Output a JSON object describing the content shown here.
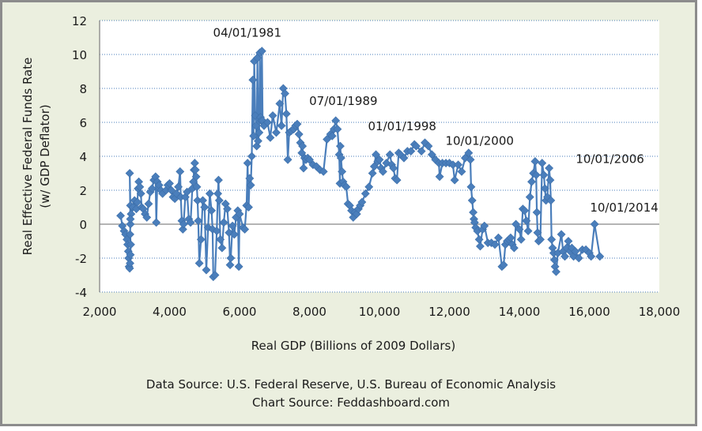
{
  "chart_data": {
    "type": "scatter",
    "mode": "lines+markers",
    "title": "",
    "xlabel": "Real GDP (Billions of 2009 Dollars)",
    "ylabel_lines": [
      "Real Effective Federal Funds Rate",
      "(w/ GDP Deflator)"
    ],
    "xlim": [
      2000,
      18000
    ],
    "ylim": [
      -4,
      12
    ],
    "x_ticks": [
      2000,
      4000,
      6000,
      8000,
      10000,
      12000,
      14000,
      16000,
      18000
    ],
    "x_tick_labels": [
      "2,000",
      "4,000",
      "6,000",
      "8,000",
      "10,000",
      "12,000",
      "14,000",
      "16,000",
      "18,000"
    ],
    "y_ticks": [
      -4,
      -2,
      0,
      2,
      4,
      6,
      8,
      10,
      12
    ],
    "y_tick_labels": [
      "-4",
      "-2",
      "0",
      "2",
      "4",
      "6",
      "8",
      "10",
      "12"
    ],
    "grid": "horizontal dotted",
    "series_color": "#4a7ebb",
    "marker": "diamond",
    "annotations": [
      {
        "text": "04/01/1981",
        "x": 6600,
        "y": 10.2
      },
      {
        "text": "07/01/1989",
        "x": 8850,
        "y": 6.1
      },
      {
        "text": "01/01/1998",
        "x": 11300,
        "y": 4.8
      },
      {
        "text": "10/01/2000",
        "x": 12700,
        "y": 4.2
      },
      {
        "text": "10/01/2006",
        "x": 14800,
        "y": 3.7
      },
      {
        "text": "10/01/2014",
        "x": 16200,
        "y": 0.0
      }
    ],
    "points": [
      [
        2600,
        0.5
      ],
      [
        2650,
        -0.1
      ],
      [
        2700,
        -0.4
      ],
      [
        2740,
        -0.6
      ],
      [
        2780,
        -0.9
      ],
      [
        2800,
        -1.2
      ],
      [
        2820,
        -1.6
      ],
      [
        2830,
        -2.0
      ],
      [
        2840,
        -2.5
      ],
      [
        2860,
        -2.6
      ],
      [
        2870,
        -2.3
      ],
      [
        2880,
        -1.8
      ],
      [
        2890,
        -1.2
      ],
      [
        2870,
        -0.6
      ],
      [
        2880,
        0.0
      ],
      [
        2900,
        0.6
      ],
      [
        2880,
        1.1
      ],
      [
        2860,
        3.0
      ],
      [
        2880,
        0.3
      ],
      [
        2950,
        1.0
      ],
      [
        3000,
        1.4
      ],
      [
        3050,
        0.9
      ],
      [
        3080,
        1.3
      ],
      [
        3100,
        2.1
      ],
      [
        3120,
        2.5
      ],
      [
        3150,
        2.2
      ],
      [
        3180,
        1.8
      ],
      [
        3200,
        1.0
      ],
      [
        3250,
        0.9
      ],
      [
        3300,
        0.6
      ],
      [
        3350,
        0.4
      ],
      [
        3400,
        1.2
      ],
      [
        3450,
        1.9
      ],
      [
        3500,
        2.1
      ],
      [
        3550,
        2.6
      ],
      [
        3600,
        2.8
      ],
      [
        3620,
        0.1
      ],
      [
        3650,
        2.5
      ],
      [
        3700,
        2.3
      ],
      [
        3750,
        2.0
      ],
      [
        3800,
        1.8
      ],
      [
        3900,
        2.0
      ],
      [
        3950,
        2.3
      ],
      [
        4000,
        2.4
      ],
      [
        4050,
        2.0
      ],
      [
        4100,
        1.6
      ],
      [
        4150,
        1.5
      ],
      [
        4200,
        1.8
      ],
      [
        4250,
        2.2
      ],
      [
        4300,
        3.1
      ],
      [
        4320,
        1.6
      ],
      [
        4350,
        0.2
      ],
      [
        4380,
        -0.3
      ],
      [
        4400,
        0.0
      ],
      [
        4450,
        1.6
      ],
      [
        4500,
        1.9
      ],
      [
        4550,
        0.3
      ],
      [
        4600,
        0.1
      ],
      [
        4650,
        2.1
      ],
      [
        4680,
        2.5
      ],
      [
        4700,
        3.2
      ],
      [
        4720,
        3.6
      ],
      [
        4740,
        3.2
      ],
      [
        4760,
        2.8
      ],
      [
        4780,
        2.2
      ],
      [
        4800,
        1.4
      ],
      [
        4820,
        0.2
      ],
      [
        4850,
        -2.3
      ],
      [
        4900,
        -0.9
      ],
      [
        4950,
        1.4
      ],
      [
        5000,
        1.0
      ],
      [
        5050,
        -2.7
      ],
      [
        5100,
        -0.2
      ],
      [
        5150,
        1.8
      ],
      [
        5200,
        0.8
      ],
      [
        5230,
        -0.3
      ],
      [
        5250,
        -3.1
      ],
      [
        5300,
        -3.0
      ],
      [
        5350,
        -0.4
      ],
      [
        5380,
        1.8
      ],
      [
        5400,
        2.6
      ],
      [
        5420,
        1.4
      ],
      [
        5450,
        -0.9
      ],
      [
        5500,
        -1.4
      ],
      [
        5550,
        0.1
      ],
      [
        5600,
        1.2
      ],
      [
        5650,
        0.9
      ],
      [
        5700,
        -0.5
      ],
      [
        5730,
        -2.4
      ],
      [
        5750,
        -2.0
      ],
      [
        5800,
        -0.1
      ],
      [
        5850,
        -0.6
      ],
      [
        5900,
        0.4
      ],
      [
        5950,
        0.8
      ],
      [
        5980,
        -2.5
      ],
      [
        6000,
        0.6
      ],
      [
        6100,
        -0.2
      ],
      [
        6150,
        -0.3
      ],
      [
        6200,
        1.1
      ],
      [
        6230,
        3.6
      ],
      [
        6260,
        1.0
      ],
      [
        6290,
        2.7
      ],
      [
        6320,
        2.3
      ],
      [
        6350,
        4.0
      ],
      [
        6380,
        8.5
      ],
      [
        6400,
        5.2
      ],
      [
        6420,
        9.6
      ],
      [
        6450,
        6.4
      ],
      [
        6470,
        5.8
      ],
      [
        6490,
        4.6
      ],
      [
        6510,
        9.8
      ],
      [
        6530,
        4.9
      ],
      [
        6560,
        5.4
      ],
      [
        6580,
        10.1
      ],
      [
        6600,
        6.3
      ],
      [
        6620,
        6.1
      ],
      [
        6640,
        10.2
      ],
      [
        6660,
        6.1
      ],
      [
        6700,
        5.8
      ],
      [
        6800,
        6.0
      ],
      [
        6880,
        5.1
      ],
      [
        6950,
        6.4
      ],
      [
        7050,
        5.4
      ],
      [
        7150,
        7.1
      ],
      [
        7200,
        5.8
      ],
      [
        7250,
        8.0
      ],
      [
        7300,
        7.7
      ],
      [
        7340,
        6.5
      ],
      [
        7380,
        3.8
      ],
      [
        7420,
        5.4
      ],
      [
        7480,
        5.5
      ],
      [
        7550,
        5.6
      ],
      [
        7600,
        5.8
      ],
      [
        7650,
        5.9
      ],
      [
        7700,
        5.3
      ],
      [
        7740,
        4.8
      ],
      [
        7780,
        4.2
      ],
      [
        7800,
        4.6
      ],
      [
        7830,
        3.3
      ],
      [
        7860,
        3.9
      ],
      [
        7900,
        3.8
      ],
      [
        7950,
        3.9
      ],
      [
        8000,
        3.8
      ],
      [
        8100,
        3.5
      ],
      [
        8200,
        3.4
      ],
      [
        8300,
        3.2
      ],
      [
        8400,
        3.1
      ],
      [
        8500,
        5.0
      ],
      [
        8600,
        5.3
      ],
      [
        8650,
        5.2
      ],
      [
        8700,
        5.6
      ],
      [
        8750,
        6.1
      ],
      [
        8800,
        5.6
      ],
      [
        8850,
        4.1
      ],
      [
        8870,
        2.4
      ],
      [
        8880,
        4.6
      ],
      [
        8900,
        3.9
      ],
      [
        8930,
        3.1
      ],
      [
        8960,
        2.5
      ],
      [
        9000,
        2.3
      ],
      [
        9050,
        2.2
      ],
      [
        9100,
        1.2
      ],
      [
        9150,
        1.1
      ],
      [
        9200,
        0.8
      ],
      [
        9250,
        0.4
      ],
      [
        9300,
        0.7
      ],
      [
        9350,
        0.6
      ],
      [
        9400,
        0.9
      ],
      [
        9450,
        1.1
      ],
      [
        9500,
        1.3
      ],
      [
        9600,
        1.8
      ],
      [
        9700,
        2.2
      ],
      [
        9800,
        3.0
      ],
      [
        9850,
        3.4
      ],
      [
        9900,
        4.1
      ],
      [
        9950,
        3.7
      ],
      [
        10000,
        3.8
      ],
      [
        10050,
        3.3
      ],
      [
        10100,
        3.1
      ],
      [
        10200,
        3.6
      ],
      [
        10300,
        4.1
      ],
      [
        10350,
        3.5
      ],
      [
        10400,
        3.3
      ],
      [
        10450,
        2.7
      ],
      [
        10500,
        2.6
      ],
      [
        10550,
        4.2
      ],
      [
        10600,
        4.1
      ],
      [
        10700,
        3.9
      ],
      [
        10800,
        4.3
      ],
      [
        10900,
        4.3
      ],
      [
        11000,
        4.7
      ],
      [
        11050,
        4.6
      ],
      [
        11200,
        4.3
      ],
      [
        11300,
        4.8
      ],
      [
        11400,
        4.6
      ],
      [
        11500,
        4.1
      ],
      [
        11600,
        3.8
      ],
      [
        11700,
        3.6
      ],
      [
        11720,
        2.8
      ],
      [
        11800,
        3.6
      ],
      [
        11900,
        3.6
      ],
      [
        12000,
        3.6
      ],
      [
        12100,
        3.5
      ],
      [
        12150,
        2.6
      ],
      [
        12250,
        3.5
      ],
      [
        12350,
        3.1
      ],
      [
        12450,
        3.9
      ],
      [
        12550,
        4.2
      ],
      [
        12600,
        3.8
      ],
      [
        12620,
        2.2
      ],
      [
        12650,
        1.4
      ],
      [
        12680,
        0.7
      ],
      [
        12700,
        0.3
      ],
      [
        12720,
        0.1
      ],
      [
        12750,
        -0.2
      ],
      [
        12800,
        -0.4
      ],
      [
        12850,
        -0.9
      ],
      [
        12880,
        -1.3
      ],
      [
        12950,
        -0.3
      ],
      [
        13000,
        -0.1
      ],
      [
        13100,
        -1.1
      ],
      [
        13200,
        -1.1
      ],
      [
        13300,
        -1.2
      ],
      [
        13400,
        -0.8
      ],
      [
        13500,
        -2.5
      ],
      [
        13550,
        -2.4
      ],
      [
        13600,
        -1.2
      ],
      [
        13650,
        -1.0
      ],
      [
        13700,
        -0.9
      ],
      [
        13750,
        -0.8
      ],
      [
        13800,
        -1.2
      ],
      [
        13850,
        -1.4
      ],
      [
        13900,
        0.0
      ],
      [
        14000,
        -0.3
      ],
      [
        14050,
        -0.9
      ],
      [
        14100,
        0.9
      ],
      [
        14150,
        0.8
      ],
      [
        14200,
        0.2
      ],
      [
        14250,
        -0.4
      ],
      [
        14300,
        1.6
      ],
      [
        14350,
        2.5
      ],
      [
        14400,
        3.0
      ],
      [
        14450,
        3.7
      ],
      [
        14480,
        2.9
      ],
      [
        14500,
        0.7
      ],
      [
        14520,
        -0.5
      ],
      [
        14550,
        -1.0
      ],
      [
        14600,
        -0.9
      ],
      [
        14650,
        3.6
      ],
      [
        14700,
        2.9
      ],
      [
        14730,
        2.1
      ],
      [
        14760,
        1.4
      ],
      [
        14800,
        1.6
      ],
      [
        14850,
        3.3
      ],
      [
        14880,
        2.6
      ],
      [
        14900,
        1.4
      ],
      [
        14920,
        -0.9
      ],
      [
        14950,
        -1.4
      ],
      [
        14980,
        -1.7
      ],
      [
        15000,
        -2.1
      ],
      [
        15020,
        -2.5
      ],
      [
        15050,
        -2.8
      ],
      [
        15100,
        -1.7
      ],
      [
        15200,
        -0.6
      ],
      [
        15250,
        -1.6
      ],
      [
        15300,
        -1.9
      ],
      [
        15350,
        -1.4
      ],
      [
        15400,
        -1.0
      ],
      [
        15450,
        -1.6
      ],
      [
        15500,
        -1.4
      ],
      [
        15550,
        -1.9
      ],
      [
        15600,
        -1.6
      ],
      [
        15700,
        -2.0
      ],
      [
        15800,
        -1.5
      ],
      [
        15900,
        -1.5
      ],
      [
        16000,
        -1.7
      ],
      [
        16050,
        -1.9
      ],
      [
        16150,
        0.0
      ],
      [
        16300,
        -1.9
      ]
    ]
  },
  "footer": {
    "data_source": "Data Source: U.S. Federal Reserve, U.S. Bureau of Economic Analysis",
    "chart_source": "Chart Source: Feddashboard.com"
  }
}
